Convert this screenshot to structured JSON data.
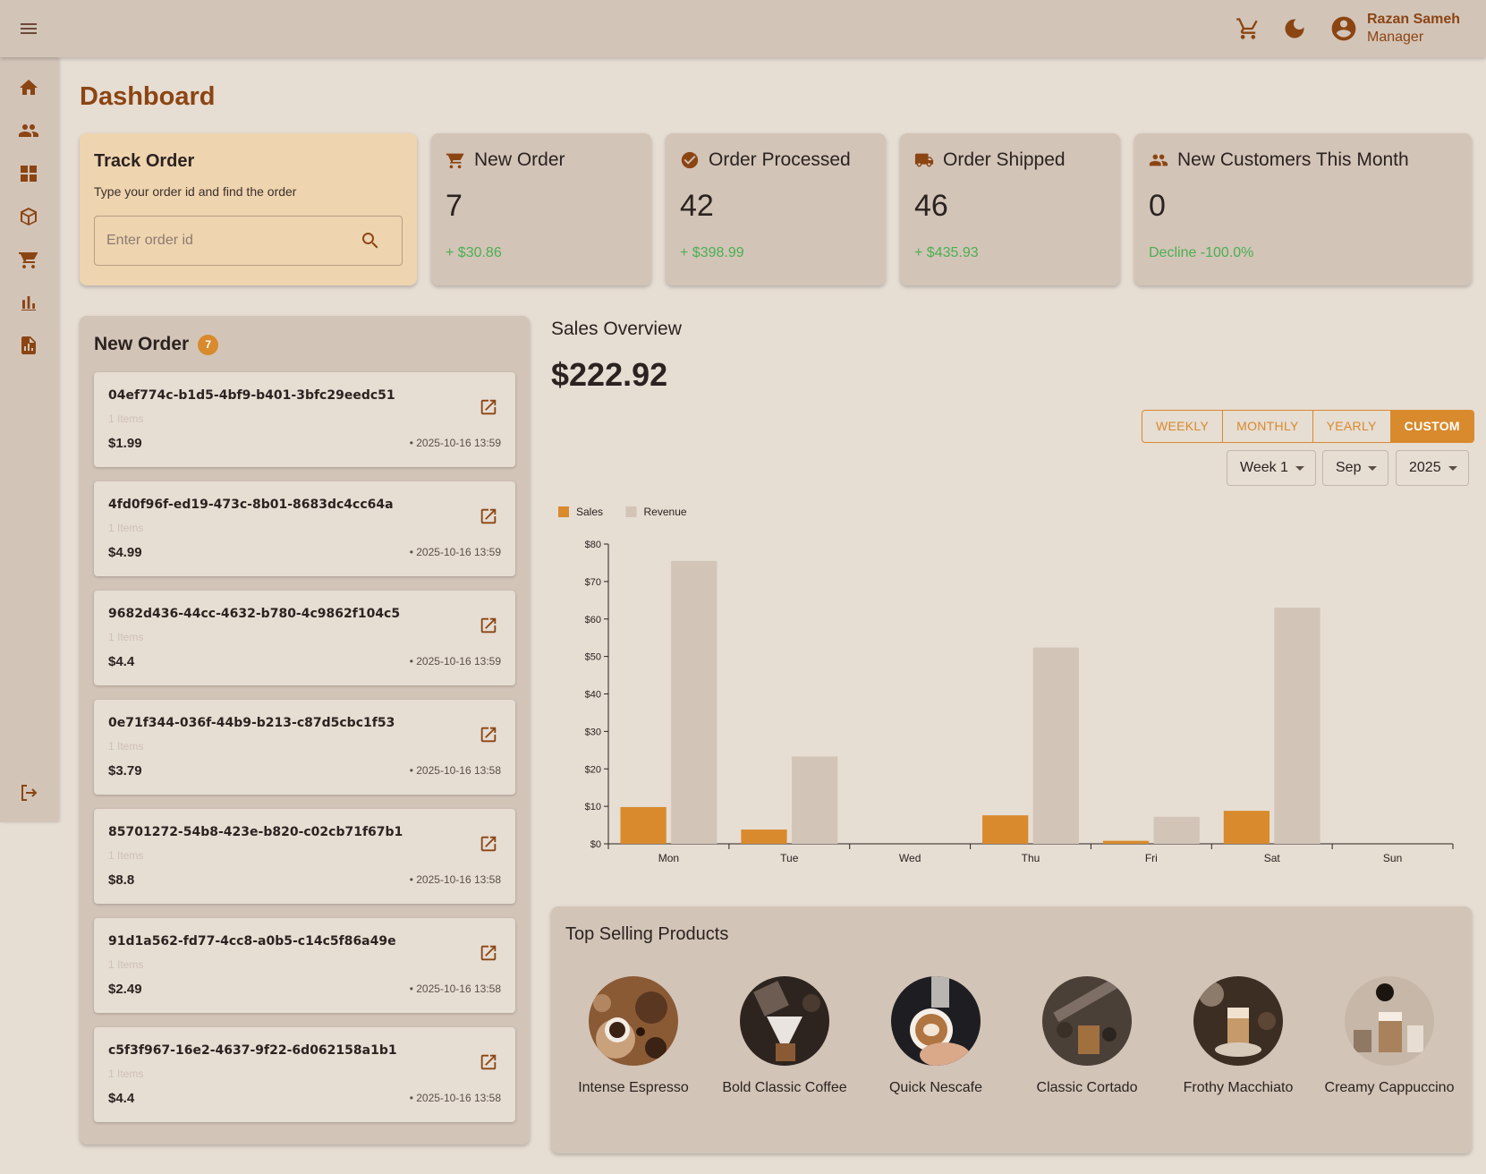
{
  "topbar": {
    "user_name": "Razan Sameh",
    "user_role": "Manager"
  },
  "page_title": "Dashboard",
  "track_order": {
    "title": "Track Order",
    "subtitle": "Type your order id and find the order",
    "placeholder": "Enter order id"
  },
  "stats": {
    "new_order": {
      "label": "New Order",
      "value": "7",
      "delta": "+ $30.86"
    },
    "order_processed": {
      "label": "Order Processed",
      "value": "42",
      "delta": "+ $398.99"
    },
    "order_shipped": {
      "label": "Order Shipped",
      "value": "46",
      "delta": "+ $435.93"
    },
    "new_customers": {
      "label": "New Customers This Month",
      "value": "0",
      "delta": "Decline -100.0%"
    }
  },
  "orders": {
    "title": "New Order",
    "badge": "7",
    "items": [
      {
        "id": "04ef774c-b1d5-4bf9-b401-3bfc29eedc51",
        "count": "1 Items",
        "price": "$1.99",
        "date": "• 2025-10-16 13:59"
      },
      {
        "id": "4fd0f96f-ed19-473c-8b01-8683dc4cc64a",
        "count": "1 Items",
        "price": "$4.99",
        "date": "• 2025-10-16 13:59"
      },
      {
        "id": "9682d436-44cc-4632-b780-4c9862f104c5",
        "count": "1 Items",
        "price": "$4.4",
        "date": "• 2025-10-16 13:59"
      },
      {
        "id": "0e71f344-036f-44b9-b213-c87d5cbc1f53",
        "count": "1 Items",
        "price": "$3.79",
        "date": "• 2025-10-16 13:58"
      },
      {
        "id": "85701272-54b8-423e-b820-c02cb71f67b1",
        "count": "1 Items",
        "price": "$8.8",
        "date": "• 2025-10-16 13:58"
      },
      {
        "id": "91d1a562-fd77-4cc8-a0b5-c14c5f86a49e",
        "count": "1 Items",
        "price": "$2.49",
        "date": "• 2025-10-16 13:58"
      },
      {
        "id": "c5f3f967-16e2-4637-9f22-6d062158a1b1",
        "count": "1 Items",
        "price": "$4.4",
        "date": "• 2025-10-16 13:58"
      }
    ]
  },
  "sales": {
    "title": "Sales Overview",
    "total": "$222.92",
    "tabs": [
      "WEEKLY",
      "MONTHLY",
      "YEARLY",
      "CUSTOM"
    ],
    "active_tab": "CUSTOM",
    "week": "Week 1",
    "month": "Sep",
    "year": "2025"
  },
  "chart_data": {
    "type": "bar",
    "categories": [
      "Mon",
      "Tue",
      "Wed",
      "Thu",
      "Fri",
      "Sat",
      "Sun"
    ],
    "series": [
      {
        "name": "Sales",
        "values": [
          9.8,
          3.8,
          0,
          7.6,
          0.8,
          8.8,
          0
        ],
        "color": "#d88a2c"
      },
      {
        "name": "Revenue",
        "values": [
          75.5,
          23.3,
          0,
          52.4,
          7.2,
          63,
          0
        ],
        "color": "#d3c4b8"
      }
    ],
    "yticks": [
      "$0",
      "$10",
      "$20",
      "$30",
      "$40",
      "$50",
      "$60",
      "$70",
      "$80"
    ],
    "ylim": [
      0,
      80
    ],
    "legend": "top-left",
    "grid": false
  },
  "top_selling": {
    "title": "Top Selling Products",
    "products": [
      {
        "name": "Intense Espresso",
        "icon": "espresso-photo"
      },
      {
        "name": "Bold Classic Coffee",
        "icon": "pour-over-photo"
      },
      {
        "name": "Quick Nescafe",
        "icon": "latte-art-photo"
      },
      {
        "name": "Classic Cortado",
        "icon": "cortado-photo"
      },
      {
        "name": "Frothy Macchiato",
        "icon": "macchiato-photo"
      },
      {
        "name": "Creamy Cappuccino",
        "icon": "cappuccino-photo"
      }
    ]
  },
  "colors": {
    "accent": "#d88a2c",
    "brand_brown": "#8b4513",
    "positive": "#4caf50",
    "surface": "#d3c4b8",
    "background": "#e6ddd3",
    "track_card": "#efd4b0"
  }
}
